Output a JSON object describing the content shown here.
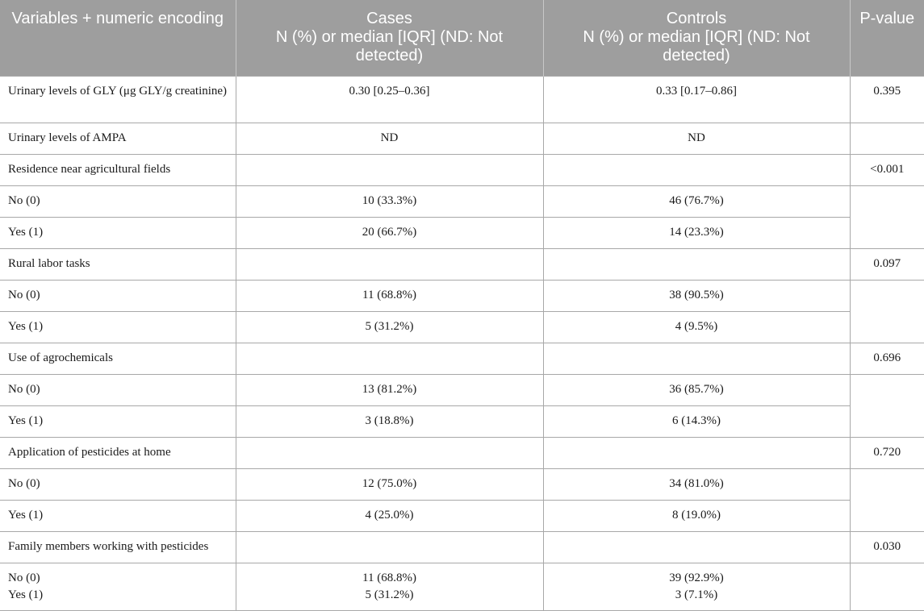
{
  "headers": {
    "variables": "Variables + numeric encoding",
    "cases_line1": "Cases",
    "cases_line2": "N (%) or median [IQR] (ND: Not detected)",
    "controls_line1": "Controls",
    "controls_line2": "N (%) or median [IQR] (ND: Not detected)",
    "pvalue": "P-value"
  },
  "rows": {
    "gly": {
      "label": "Urinary levels of GLY (μg GLY/g creatinine)",
      "cases": "0.30 [0.25–0.36]",
      "controls": "0.33 [0.17–0.86]",
      "p": "0.395"
    },
    "ampa": {
      "label": "Urinary levels of AMPA",
      "cases": "ND",
      "controls": "ND",
      "p": ""
    },
    "residence": {
      "label": "Residence near agricultural fields",
      "p": "<0.001",
      "no": {
        "label": "No (0)",
        "cases": "10 (33.3%)",
        "controls": "46 (76.7%)"
      },
      "yes": {
        "label": "Yes (1)",
        "cases": "20 (66.7%)",
        "controls": "14 (23.3%)"
      }
    },
    "rural": {
      "label": "Rural labor tasks",
      "p": "0.097",
      "no": {
        "label": "No (0)",
        "cases": "11 (68.8%)",
        "controls": "38 (90.5%)"
      },
      "yes": {
        "label": "Yes (1)",
        "cases": "5 (31.2%)",
        "controls": "4 (9.5%)"
      }
    },
    "agro": {
      "label": "Use of agrochemicals",
      "p": "0.696",
      "no": {
        "label": "No (0)",
        "cases": "13 (81.2%)",
        "controls": "36 (85.7%)"
      },
      "yes": {
        "label": "Yes (1)",
        "cases": "3 (18.8%)",
        "controls": "6 (14.3%)"
      }
    },
    "home": {
      "label": "Application of pesticides at home",
      "p": "0.720",
      "no": {
        "label": "No (0)",
        "cases": "12 (75.0%)",
        "controls": "34 (81.0%)"
      },
      "yes": {
        "label": "Yes (1)",
        "cases": "4 (25.0%)",
        "controls": "8 (19.0%)"
      }
    },
    "family": {
      "label": "Family members working with pesticides",
      "p": "0.030",
      "no": {
        "label": "No (0)",
        "cases": "11 (68.8%)",
        "controls": "39 (92.9%)"
      },
      "yes": {
        "label": "Yes (1)",
        "cases": "5 (31.2%)",
        "controls": "3 (7.1%)"
      }
    }
  }
}
